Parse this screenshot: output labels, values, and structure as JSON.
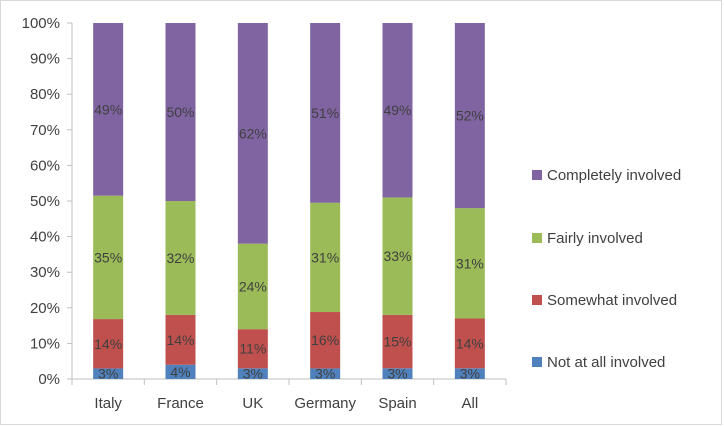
{
  "chart_data": {
    "type": "bar",
    "stacked": true,
    "categories": [
      "Italy",
      "France",
      "UK",
      "Germany",
      "Spain",
      "All"
    ],
    "series": [
      {
        "name": "Not at all involved",
        "color": "#4f81bd",
        "values": [
          3,
          4,
          3,
          3,
          3,
          3
        ],
        "value_labels": [
          "3%",
          "4%",
          "3%",
          "3%",
          "3%",
          "3%"
        ]
      },
      {
        "name": "Somewhat involved",
        "color": "#c0504d",
        "values": [
          14,
          14,
          11,
          16,
          15,
          14
        ],
        "value_labels": [
          "14%",
          "14%",
          "11%",
          "16%",
          "15%",
          "14%"
        ]
      },
      {
        "name": "Fairly involved",
        "color": "#9bbb59",
        "values": [
          35,
          32,
          24,
          31,
          33,
          31
        ],
        "value_labels": [
          "35%",
          "32%",
          "24%",
          "31%",
          "33%",
          "31%"
        ]
      },
      {
        "name": "Completely involved",
        "color": "#8064a2",
        "values": [
          49,
          50,
          62,
          51,
          49,
          52
        ],
        "value_labels": [
          "49%",
          "50%",
          "62%",
          "51%",
          "49%",
          "52%"
        ]
      }
    ],
    "y_ticks": [
      "0%",
      "10%",
      "20%",
      "30%",
      "40%",
      "50%",
      "60%",
      "70%",
      "80%",
      "90%",
      "100%"
    ],
    "ylim": [
      0,
      100
    ],
    "legend_position": "right",
    "grid": false,
    "title": "",
    "xlabel": "",
    "ylabel": ""
  }
}
